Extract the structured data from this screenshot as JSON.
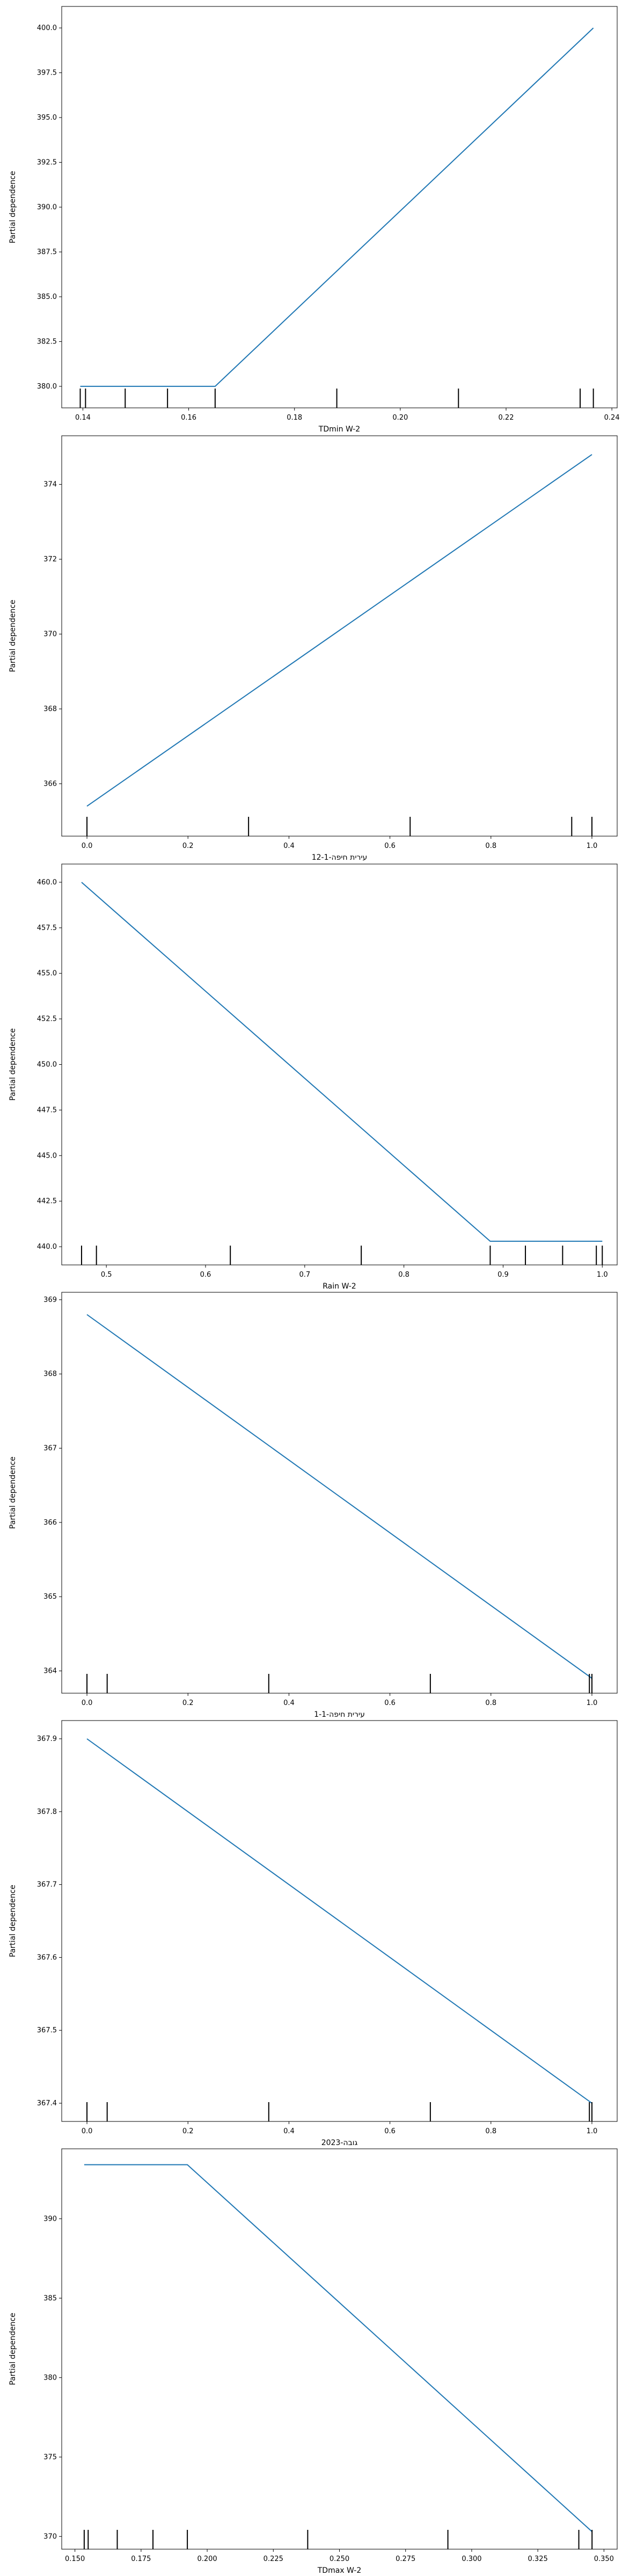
{
  "chart_data": [
    {
      "type": "line",
      "xlabel": "TDmin W-2",
      "ylabel": "Partial dependence",
      "xlim": [
        0.136,
        0.241
      ],
      "ylim": [
        378.8,
        401.2
      ],
      "xticks": [
        0.14,
        0.16,
        0.18,
        0.2,
        0.22,
        0.24
      ],
      "xtick_labels": [
        "0.14",
        "0.16",
        "0.18",
        "0.20",
        "0.22",
        "0.24"
      ],
      "yticks": [
        380.0,
        382.5,
        385.0,
        387.5,
        390.0,
        392.5,
        395.0,
        397.5,
        400.0
      ],
      "ytick_labels": [
        "380.0",
        "382.5",
        "385.0",
        "387.5",
        "390.0",
        "392.5",
        "395.0",
        "397.5",
        "400.0"
      ],
      "x": [
        0.1395,
        0.165,
        0.2365
      ],
      "y": [
        380.0,
        380.0,
        400.0
      ],
      "rug": [
        0.1395,
        0.1405,
        0.148,
        0.156,
        0.165,
        0.188,
        0.211,
        0.234,
        0.2365
      ]
    },
    {
      "type": "line",
      "xlabel": "עירית חיפה-12-1",
      "ylabel": "Partial dependence",
      "xlim": [
        -0.05,
        1.05
      ],
      "ylim": [
        364.6,
        375.3
      ],
      "xticks": [
        0.0,
        0.2,
        0.4,
        0.6,
        0.8,
        1.0
      ],
      "xtick_labels": [
        "0.0",
        "0.2",
        "0.4",
        "0.6",
        "0.8",
        "1.0"
      ],
      "yticks": [
        366,
        368,
        370,
        372,
        374
      ],
      "ytick_labels": [
        "366",
        "368",
        "370",
        "372",
        "374"
      ],
      "x": [
        0.0,
        1.0
      ],
      "y": [
        365.4,
        374.8
      ],
      "rug": [
        0.0,
        0.32,
        0.64,
        0.96,
        1.0
      ]
    },
    {
      "type": "line",
      "xlabel": "Rain W-2",
      "ylabel": "Partial dependence",
      "xlim": [
        0.455,
        1.015
      ],
      "ylim": [
        439.0,
        461.0
      ],
      "xticks": [
        0.5,
        0.6,
        0.7,
        0.8,
        0.9,
        1.0
      ],
      "xtick_labels": [
        "0.5",
        "0.6",
        "0.7",
        "0.8",
        "0.9",
        "1.0"
      ],
      "yticks": [
        440.0,
        442.5,
        445.0,
        447.5,
        450.0,
        452.5,
        455.0,
        457.5,
        460.0
      ],
      "ytick_labels": [
        "440.0",
        "442.5",
        "445.0",
        "447.5",
        "450.0",
        "452.5",
        "455.0",
        "457.5",
        "460.0"
      ],
      "x": [
        0.475,
        0.887,
        1.0
      ],
      "y": [
        460.0,
        440.3,
        440.3
      ],
      "rug": [
        0.475,
        0.49,
        0.625,
        0.757,
        0.887,
        0.9225,
        0.96,
        0.994,
        1.0
      ]
    },
    {
      "type": "line",
      "xlabel": "עירית חיפה-1-1",
      "ylabel": "Partial dependence",
      "xlim": [
        -0.05,
        1.05
      ],
      "ylim": [
        363.7,
        369.1
      ],
      "xticks": [
        0.0,
        0.2,
        0.4,
        0.6,
        0.8,
        1.0
      ],
      "xtick_labels": [
        "0.0",
        "0.2",
        "0.4",
        "0.6",
        "0.8",
        "1.0"
      ],
      "yticks": [
        364,
        365,
        366,
        367,
        368,
        369
      ],
      "ytick_labels": [
        "364",
        "365",
        "366",
        "367",
        "368",
        "369"
      ],
      "x": [
        0.0,
        1.0
      ],
      "y": [
        368.8,
        363.9
      ],
      "rug": [
        0.0,
        0.04,
        0.36,
        0.68,
        0.995,
        1.0
      ]
    },
    {
      "type": "line",
      "xlabel": "גובה-2023",
      "ylabel": "Partial dependence",
      "xlim": [
        -0.05,
        1.05
      ],
      "ylim": [
        367.375,
        367.925
      ],
      "xticks": [
        0.0,
        0.2,
        0.4,
        0.6,
        0.8,
        1.0
      ],
      "xtick_labels": [
        "0.0",
        "0.2",
        "0.4",
        "0.6",
        "0.8",
        "1.0"
      ],
      "yticks": [
        367.4,
        367.5,
        367.6,
        367.7,
        367.8,
        367.9
      ],
      "ytick_labels": [
        "367.4",
        "367.5",
        "367.6",
        "367.7",
        "367.8",
        "367.9"
      ],
      "x": [
        0.0,
        1.0
      ],
      "y": [
        367.9,
        367.4
      ],
      "rug": [
        0.0,
        0.04,
        0.36,
        0.68,
        0.995,
        1.0
      ]
    },
    {
      "type": "line",
      "xlabel": "TDmax W-2",
      "ylabel": "Partial dependence",
      "xlim": [
        0.145,
        0.355
      ],
      "ylim": [
        369.2,
        394.4
      ],
      "xticks": [
        0.15,
        0.175,
        0.2,
        0.225,
        0.25,
        0.275,
        0.3,
        0.325,
        0.35
      ],
      "xtick_labels": [
        "0.150",
        "0.175",
        "0.200",
        "0.225",
        "0.250",
        "0.275",
        "0.300",
        "0.325",
        "0.350"
      ],
      "yticks": [
        370,
        375,
        380,
        385,
        390
      ],
      "ytick_labels": [
        "370",
        "375",
        "380",
        "385",
        "390"
      ],
      "x": [
        0.1535,
        0.1925,
        0.3455
      ],
      "y": [
        393.4,
        393.4,
        370.3
      ],
      "rug": [
        0.1535,
        0.155,
        0.166,
        0.1795,
        0.1925,
        0.238,
        0.291,
        0.3405,
        0.3455
      ]
    }
  ]
}
